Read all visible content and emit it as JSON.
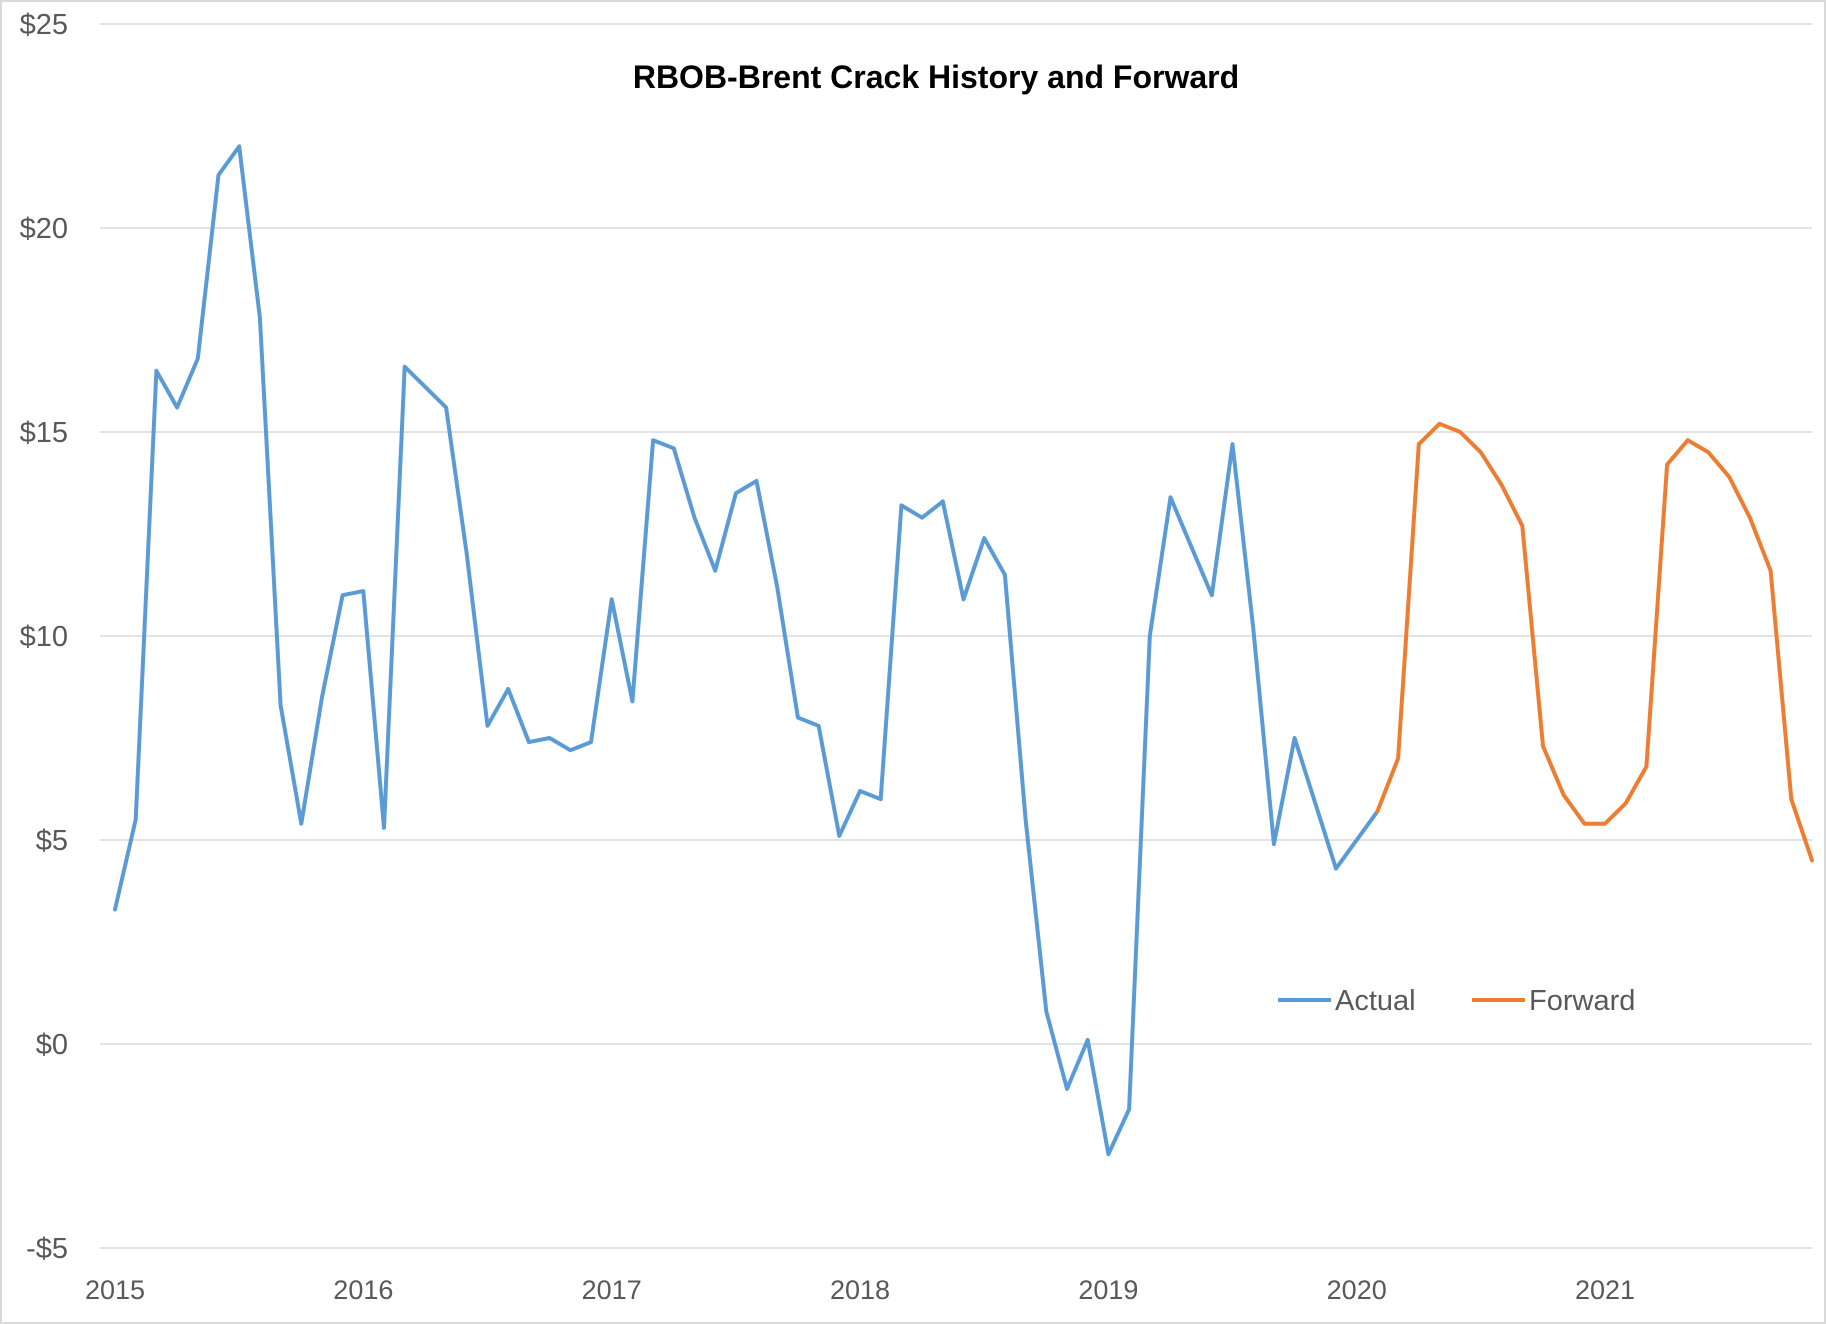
{
  "chart_data": {
    "type": "line",
    "title": "RBOB-Brent Crack History and Forward",
    "xlabel": "",
    "ylabel": "",
    "ylim": [
      -5,
      25
    ],
    "xlim": [
      "2015-01",
      "2021-11"
    ],
    "y_ticks": [
      -5,
      0,
      5,
      10,
      15,
      20,
      25
    ],
    "y_tick_labels": [
      "-$5",
      "$0",
      "$5",
      "$10",
      "$15",
      "$20",
      "$25"
    ],
    "x_tick_labels": [
      "2015",
      "2016",
      "2017",
      "2018",
      "2019",
      "2020",
      "2021"
    ],
    "grid": "horizontal",
    "legend_position": "lower-right",
    "series": [
      {
        "name": "Actual",
        "color": "#5B9BD5",
        "x": [
          "2015-01",
          "2015-02",
          "2015-03",
          "2015-04",
          "2015-05",
          "2015-06",
          "2015-07",
          "2015-08",
          "2015-09",
          "2015-10",
          "2015-11",
          "2015-12",
          "2016-01",
          "2016-02",
          "2016-03",
          "2016-04",
          "2016-05",
          "2016-06",
          "2016-07",
          "2016-08",
          "2016-09",
          "2016-10",
          "2016-11",
          "2016-12",
          "2017-01",
          "2017-02",
          "2017-03",
          "2017-04",
          "2017-05",
          "2017-06",
          "2017-07",
          "2017-08",
          "2017-09",
          "2017-10",
          "2017-11",
          "2017-12",
          "2018-01",
          "2018-02",
          "2018-03",
          "2018-04",
          "2018-05",
          "2018-06",
          "2018-07",
          "2018-08",
          "2018-09",
          "2018-10",
          "2018-11",
          "2018-12",
          "2019-01",
          "2019-02",
          "2019-03",
          "2019-04",
          "2019-05",
          "2019-06",
          "2019-07",
          "2019-08",
          "2019-09",
          "2019-10",
          "2019-11",
          "2019-12",
          "2020-01",
          "2020-02"
        ],
        "values": [
          3.3,
          5.5,
          16.5,
          15.6,
          16.8,
          21.3,
          22.0,
          17.8,
          8.3,
          5.4,
          8.5,
          11.0,
          11.1,
          5.3,
          16.6,
          16.1,
          15.6,
          12.0,
          7.8,
          8.7,
          7.4,
          7.5,
          7.2,
          7.4,
          10.9,
          8.4,
          14.8,
          14.6,
          12.9,
          11.6,
          13.5,
          13.8,
          11.2,
          8.0,
          7.8,
          5.1,
          6.2,
          6.0,
          13.2,
          12.9,
          13.3,
          10.9,
          12.4,
          11.5,
          5.5,
          0.8,
          -1.1,
          0.1,
          -2.7,
          -1.6,
          10.0,
          13.4,
          12.2,
          11.0,
          14.7,
          10.2,
          4.9,
          7.5,
          5.9,
          4.3,
          5.0,
          5.7
        ]
      },
      {
        "name": "Forward",
        "color": "#ED7D31",
        "x": [
          "2020-02",
          "2020-03",
          "2020-04",
          "2020-05",
          "2020-06",
          "2020-07",
          "2020-08",
          "2020-09",
          "2020-10",
          "2020-11",
          "2020-12",
          "2021-01",
          "2021-02",
          "2021-03",
          "2021-04",
          "2021-05",
          "2021-06",
          "2021-07",
          "2021-08",
          "2021-09",
          "2021-10",
          "2021-11"
        ],
        "values": [
          5.7,
          7.0,
          14.7,
          15.2,
          15.0,
          14.5,
          13.7,
          12.7,
          7.3,
          6.1,
          5.4,
          5.4,
          5.9,
          6.8,
          14.2,
          14.8,
          14.5,
          13.9,
          12.9,
          11.6,
          6.0,
          4.5
        ]
      }
    ]
  }
}
